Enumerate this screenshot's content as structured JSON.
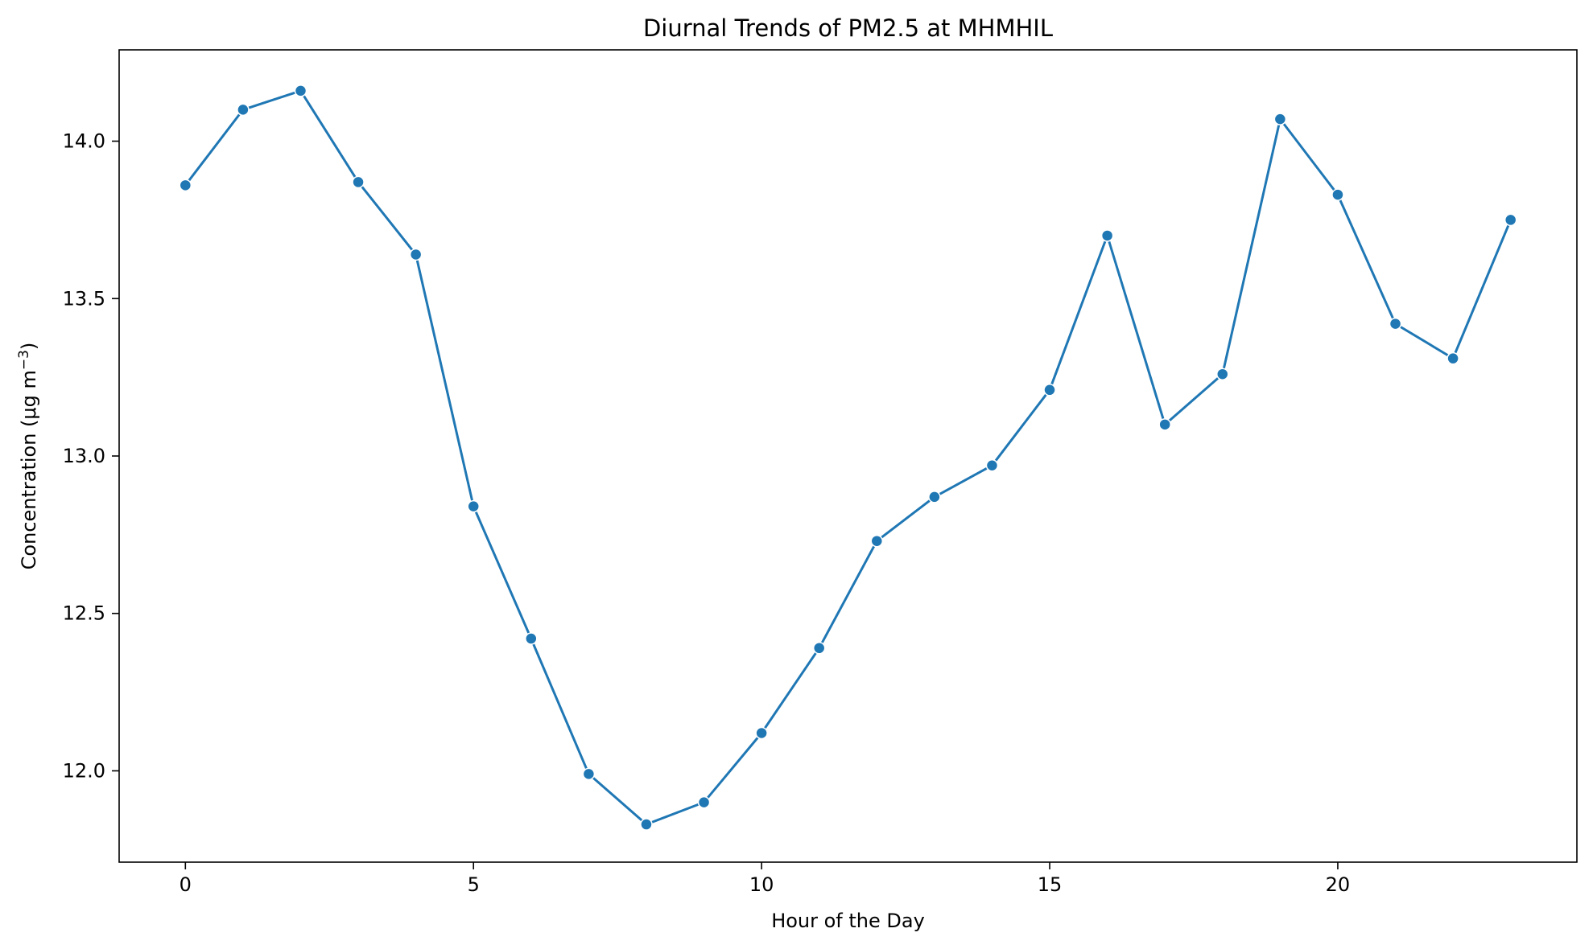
{
  "chart_data": {
    "type": "line",
    "title": "Diurnal Trends of PM2.5 at MHMHIL",
    "xlabel": "Hour of the Day",
    "ylabel_main": "Concentration (μg m",
    "ylabel_sup": "−3",
    "ylabel_close": ")",
    "xlim": [
      -1.15,
      24.15
    ],
    "ylim": [
      11.71,
      14.29
    ],
    "xticks": [
      0,
      5,
      10,
      15,
      20
    ],
    "xtick_labels": [
      "0",
      "5",
      "10",
      "15",
      "20"
    ],
    "yticks": [
      12.0,
      12.5,
      13.0,
      13.5,
      14.0
    ],
    "ytick_labels": [
      "12.0",
      "12.5",
      "13.0",
      "13.5",
      "14.0"
    ],
    "grid": false,
    "legend": "none",
    "series": [
      {
        "color": "#1f77b4",
        "marker": "circle",
        "x": [
          0,
          1,
          2,
          3,
          4,
          5,
          6,
          7,
          8,
          9,
          10,
          11,
          12,
          13,
          14,
          15,
          16,
          17,
          18,
          19,
          20,
          21,
          22,
          23
        ],
        "values": [
          13.86,
          14.1,
          14.16,
          13.87,
          13.64,
          12.84,
          12.42,
          11.99,
          11.83,
          11.9,
          12.12,
          12.39,
          12.73,
          12.87,
          12.97,
          13.21,
          13.7,
          13.1,
          13.26,
          14.07,
          13.83,
          13.42,
          13.31,
          13.75
        ]
      }
    ]
  }
}
